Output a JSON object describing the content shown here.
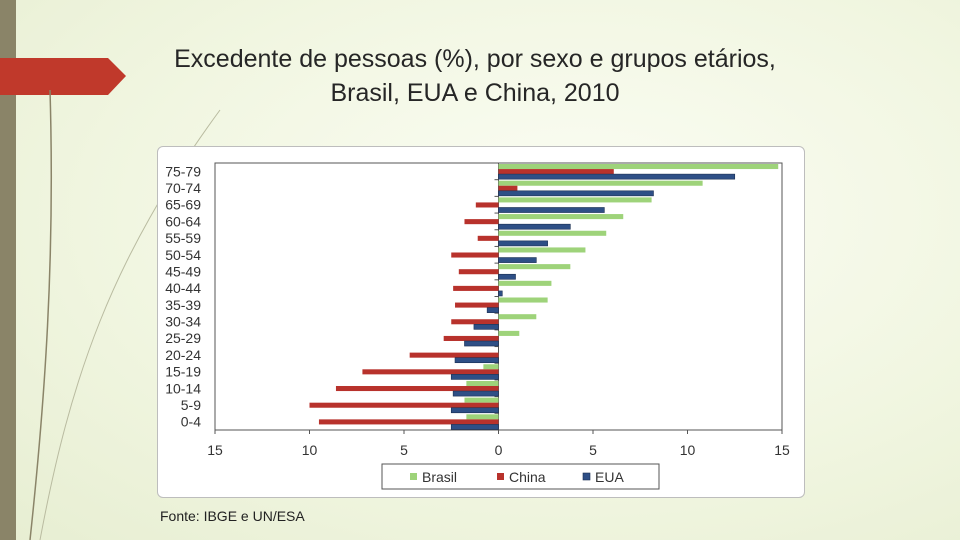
{
  "title": "Excedente de pessoas (%), por sexo e grupos etários, Brasil, EUA e China, 2010",
  "source": "Fonte: IBGE e UN/ESA",
  "colors": {
    "brasil": "#9ed37a",
    "china": "#b8322c",
    "eua": "#2e4f86",
    "accent": "#c0392b"
  },
  "chart_data": {
    "type": "bar",
    "orientation": "horizontal",
    "title": "Excedente de pessoas (%), por sexo e grupos etários, Brasil, EUA e China, 2010",
    "categories": [
      "75-79",
      "70-74",
      "65-69",
      "60-64",
      "55-59",
      "50-54",
      "45-49",
      "40-44",
      "35-39",
      "30-34",
      "25-29",
      "20-24",
      "15-19",
      "10-14",
      "5-9",
      "0-4"
    ],
    "series": [
      {
        "name": "Brasil",
        "values": [
          14.8,
          10.8,
          8.1,
          6.6,
          5.7,
          4.6,
          3.8,
          2.8,
          2.6,
          2.0,
          1.1,
          0.0,
          -0.8,
          -1.7,
          -1.8,
          -1.7
        ]
      },
      {
        "name": "China",
        "values": [
          6.1,
          1.0,
          -1.2,
          -1.8,
          -1.1,
          -2.5,
          -2.1,
          -2.4,
          -2.3,
          -2.5,
          -2.9,
          -4.7,
          -7.2,
          -8.6,
          -10.0,
          -9.5
        ]
      },
      {
        "name": "EUA",
        "values": [
          12.5,
          8.2,
          5.6,
          3.8,
          2.6,
          2.0,
          0.9,
          0.2,
          -0.6,
          -1.3,
          -1.8,
          -2.3,
          -2.5,
          -2.4,
          -2.5,
          -2.5
        ]
      }
    ],
    "xlim": [
      -15,
      15
    ],
    "x_ticks": [
      15,
      10,
      5,
      0,
      5,
      10,
      15
    ],
    "x_tick_values": [
      -15,
      -10,
      -5,
      0,
      5,
      10,
      15
    ],
    "legend": [
      "Brasil",
      "China",
      "EUA"
    ],
    "legend_position": "bottom"
  }
}
